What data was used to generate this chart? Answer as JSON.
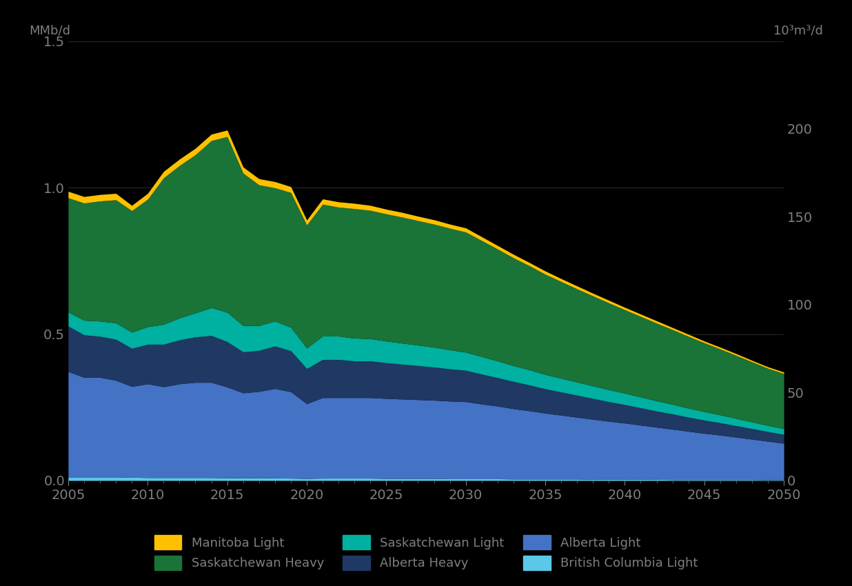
{
  "years": [
    2005,
    2006,
    2007,
    2008,
    2009,
    2010,
    2011,
    2012,
    2013,
    2014,
    2015,
    2016,
    2017,
    2018,
    2019,
    2020,
    2021,
    2022,
    2023,
    2024,
    2025,
    2026,
    2027,
    2028,
    2029,
    2030,
    2031,
    2032,
    2033,
    2034,
    2035,
    2036,
    2037,
    2038,
    2039,
    2040,
    2041,
    2042,
    2043,
    2044,
    2045,
    2046,
    2047,
    2048,
    2049,
    2050
  ],
  "bc_light": [
    0.012,
    0.012,
    0.012,
    0.012,
    0.011,
    0.01,
    0.01,
    0.01,
    0.01,
    0.01,
    0.009,
    0.009,
    0.009,
    0.009,
    0.008,
    0.007,
    0.008,
    0.008,
    0.008,
    0.008,
    0.007,
    0.007,
    0.007,
    0.007,
    0.006,
    0.006,
    0.006,
    0.006,
    0.005,
    0.005,
    0.005,
    0.005,
    0.005,
    0.004,
    0.004,
    0.004,
    0.004,
    0.004,
    0.003,
    0.003,
    0.003,
    0.003,
    0.003,
    0.003,
    0.002,
    0.002
  ],
  "alberta_light": [
    0.36,
    0.34,
    0.34,
    0.33,
    0.31,
    0.32,
    0.31,
    0.32,
    0.325,
    0.325,
    0.31,
    0.29,
    0.295,
    0.305,
    0.295,
    0.255,
    0.275,
    0.275,
    0.275,
    0.275,
    0.273,
    0.271,
    0.269,
    0.267,
    0.265,
    0.263,
    0.255,
    0.248,
    0.24,
    0.233,
    0.225,
    0.218,
    0.211,
    0.205,
    0.198,
    0.192,
    0.185,
    0.178,
    0.172,
    0.165,
    0.158,
    0.152,
    0.145,
    0.138,
    0.132,
    0.125
  ],
  "alberta_heavy": [
    0.155,
    0.145,
    0.14,
    0.14,
    0.13,
    0.135,
    0.145,
    0.15,
    0.155,
    0.16,
    0.155,
    0.14,
    0.14,
    0.145,
    0.14,
    0.12,
    0.13,
    0.13,
    0.125,
    0.125,
    0.122,
    0.119,
    0.116,
    0.113,
    0.11,
    0.107,
    0.102,
    0.097,
    0.093,
    0.088,
    0.083,
    0.079,
    0.075,
    0.071,
    0.067,
    0.063,
    0.059,
    0.055,
    0.052,
    0.048,
    0.045,
    0.042,
    0.039,
    0.036,
    0.033,
    0.03
  ],
  "sk_light": [
    0.048,
    0.05,
    0.052,
    0.056,
    0.055,
    0.06,
    0.068,
    0.075,
    0.082,
    0.095,
    0.1,
    0.09,
    0.085,
    0.085,
    0.08,
    0.07,
    0.08,
    0.08,
    0.078,
    0.076,
    0.074,
    0.072,
    0.07,
    0.068,
    0.065,
    0.062,
    0.06,
    0.057,
    0.054,
    0.052,
    0.049,
    0.047,
    0.045,
    0.043,
    0.041,
    0.039,
    0.037,
    0.035,
    0.033,
    0.031,
    0.029,
    0.027,
    0.025,
    0.023,
    0.021,
    0.02
  ],
  "sk_heavy": [
    0.39,
    0.4,
    0.41,
    0.42,
    0.415,
    0.435,
    0.5,
    0.52,
    0.54,
    0.57,
    0.6,
    0.52,
    0.48,
    0.455,
    0.46,
    0.42,
    0.45,
    0.44,
    0.442,
    0.438,
    0.434,
    0.43,
    0.425,
    0.42,
    0.415,
    0.41,
    0.396,
    0.382,
    0.368,
    0.355,
    0.342,
    0.33,
    0.318,
    0.307,
    0.296,
    0.285,
    0.275,
    0.265,
    0.255,
    0.245,
    0.235,
    0.225,
    0.215,
    0.205,
    0.195,
    0.188
  ],
  "manitoba_light": [
    0.022,
    0.022,
    0.022,
    0.022,
    0.018,
    0.02,
    0.022,
    0.022,
    0.022,
    0.022,
    0.022,
    0.021,
    0.021,
    0.021,
    0.02,
    0.017,
    0.018,
    0.018,
    0.018,
    0.017,
    0.016,
    0.016,
    0.015,
    0.015,
    0.014,
    0.014,
    0.013,
    0.012,
    0.012,
    0.011,
    0.011,
    0.01,
    0.01,
    0.009,
    0.009,
    0.008,
    0.008,
    0.008,
    0.007,
    0.007,
    0.006,
    0.006,
    0.006,
    0.005,
    0.005,
    0.005
  ],
  "colors": {
    "bc_light": "#5BC8E8",
    "alberta_light": "#4472C4",
    "alberta_heavy": "#1F3864",
    "sk_light": "#00B0A0",
    "sk_heavy": "#1A7337",
    "manitoba_light": "#FFC000"
  },
  "ylabel_left": "MMb/d",
  "ylabel_right": "10³m³/d",
  "ylim_left": [
    0.0,
    1.5
  ],
  "ylim_right": [
    0,
    250
  ],
  "yticks_left": [
    0.0,
    0.5,
    1.0,
    1.5
  ],
  "yticks_right": [
    0,
    50,
    100,
    150,
    200
  ],
  "xticks": [
    2005,
    2010,
    2015,
    2020,
    2025,
    2030,
    2035,
    2040,
    2045,
    2050
  ],
  "background_color": "#000000",
  "text_color": "#7F7F7F",
  "grid_color": "#2A2A2A",
  "legend_row1": [
    "Manitoba Light",
    "Saskatchewan Heavy",
    "Saskatchewan Light"
  ],
  "legend_row2": [
    "Alberta Heavy",
    "Alberta Light",
    "British Columbia Light"
  ],
  "legend_colors_row1": [
    "#FFC000",
    "#1A7337",
    "#00B0A0"
  ],
  "legend_colors_row2": [
    "#1F3864",
    "#4472C4",
    "#5BC8E8"
  ]
}
